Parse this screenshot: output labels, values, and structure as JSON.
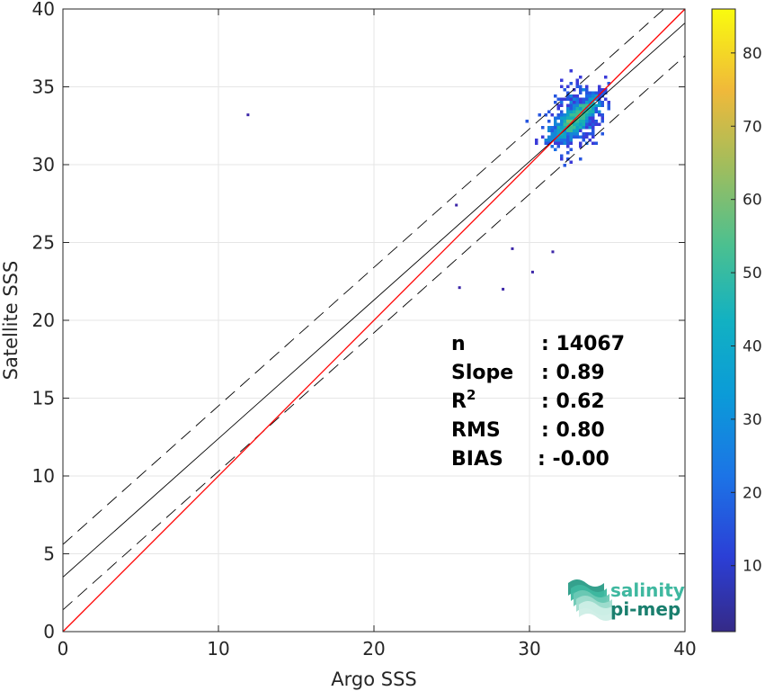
{
  "chart_data": {
    "type": "heatmap",
    "subtype": "density-scatter",
    "xlabel": "Argo SSS",
    "ylabel": "Satellite SSS",
    "xlim": [
      0,
      40
    ],
    "ylim": [
      0,
      40
    ],
    "xticks": [
      "0",
      "10",
      "20",
      "30",
      "40"
    ],
    "yticks": [
      "0",
      "5",
      "10",
      "15",
      "20",
      "25",
      "30",
      "35",
      "40"
    ],
    "grid": true,
    "colorbar": {
      "min": 1,
      "max": 86,
      "ticks": [
        "10",
        "20",
        "30",
        "40",
        "50",
        "60",
        "70",
        "80"
      ],
      "colormap": "parula"
    },
    "lines": {
      "identity": {
        "slope": 1.0,
        "intercept": 0.0,
        "color": "#ff0000"
      },
      "regression": {
        "slope": 0.89,
        "intercept": 3.5,
        "color": "#000000"
      },
      "band_upper": {
        "slope": 0.89,
        "intercept": 5.6,
        "color": "#000000"
      },
      "band_lower": {
        "slope": 0.89,
        "intercept": 1.4,
        "color": "#000000"
      }
    },
    "density": {
      "center": [
        33.0,
        33.0
      ],
      "note": "dense cluster of binned points from ~25 to 35 Argo SSS"
    },
    "outliers": [
      {
        "x": 11.9,
        "y": 33.2
      },
      {
        "x": 25.5,
        "y": 22.1
      },
      {
        "x": 28.3,
        "y": 22.0
      },
      {
        "x": 30.2,
        "y": 23.1
      },
      {
        "x": 28.9,
        "y": 24.6
      },
      {
        "x": 25.3,
        "y": 27.4
      },
      {
        "x": 31.5,
        "y": 24.4
      }
    ],
    "stats": [
      {
        "label": "n",
        "value": ": 14067"
      },
      {
        "label": "Slope",
        "value": ": 0.89"
      },
      {
        "label": "R",
        "sup": "2",
        "value": ": 0.62"
      },
      {
        "label": "RMS",
        "value": ": 0.80"
      },
      {
        "label": "BIAS",
        "value": ": -0.00"
      }
    ]
  },
  "logo": {
    "line1": "salinity",
    "line2": "pi-mep",
    "color1": "#3fb8a0",
    "color2": "#1a7f6e"
  }
}
